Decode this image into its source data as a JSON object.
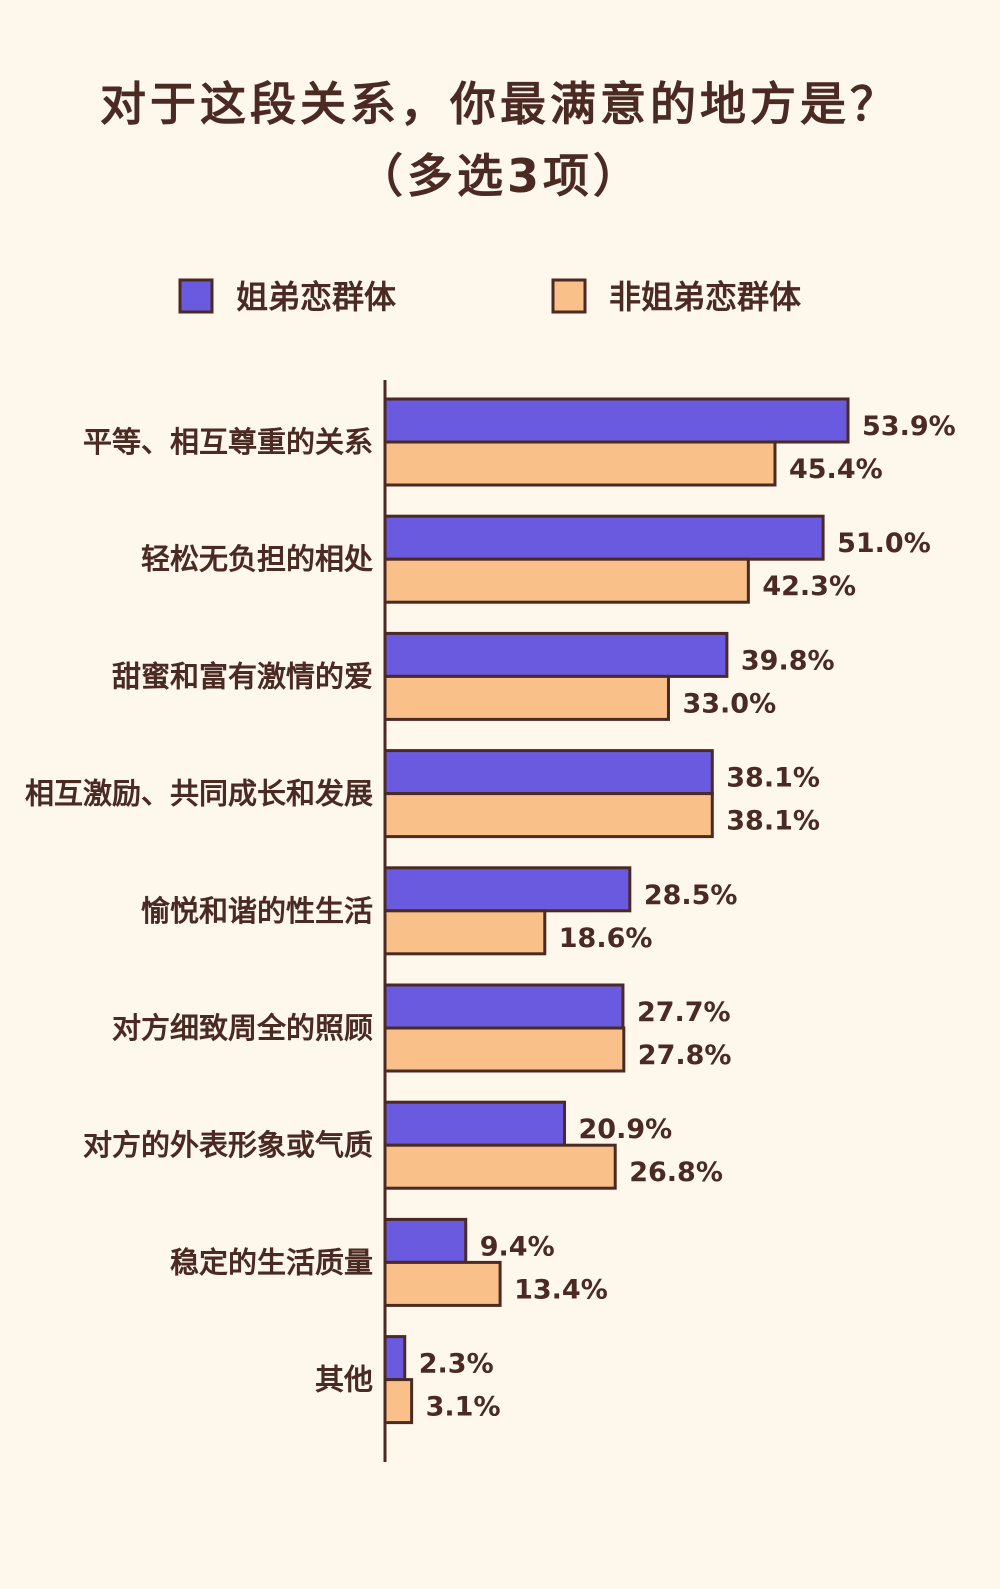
{
  "title": {
    "line1": "对于这段关系，你最满意的地方是？",
    "line2": "（多选3项）"
  },
  "colors": {
    "background": "#fdf7ec",
    "series_a": "#6a5ae0",
    "series_b": "#f9c08a",
    "stroke": "#4a2a22"
  },
  "chart_data": {
    "type": "bar",
    "orientation": "horizontal",
    "categories": [
      "平等、相互尊重的关系",
      "轻松无负担的相处",
      "甜蜜和富有激情的爱",
      "相互激励、共同成长和发展",
      "愉悦和谐的性生活",
      "对方细致周全的照顾",
      "对方的外表形象或气质",
      "稳定的生活质量",
      "其他"
    ],
    "series": [
      {
        "name": "姐弟恋群体",
        "values": [
          53.9,
          51.0,
          39.8,
          38.1,
          28.5,
          27.7,
          20.9,
          9.4,
          2.3
        ],
        "labels": [
          "53.9%",
          "51.0%",
          "39.8%",
          "38.1%",
          "28.5%",
          "27.7%",
          "20.9%",
          "9.4%",
          "2.3%"
        ]
      },
      {
        "name": "非姐弟恋群体",
        "values": [
          45.4,
          42.3,
          33.0,
          38.1,
          18.6,
          27.8,
          26.8,
          13.4,
          3.1
        ],
        "labels": [
          "45.4%",
          "42.3%",
          "33.0%",
          "38.1%",
          "18.6%",
          "27.8%",
          "26.8%",
          "13.4%",
          "3.1%"
        ]
      }
    ],
    "legend_position": "top",
    "grid": false
  }
}
